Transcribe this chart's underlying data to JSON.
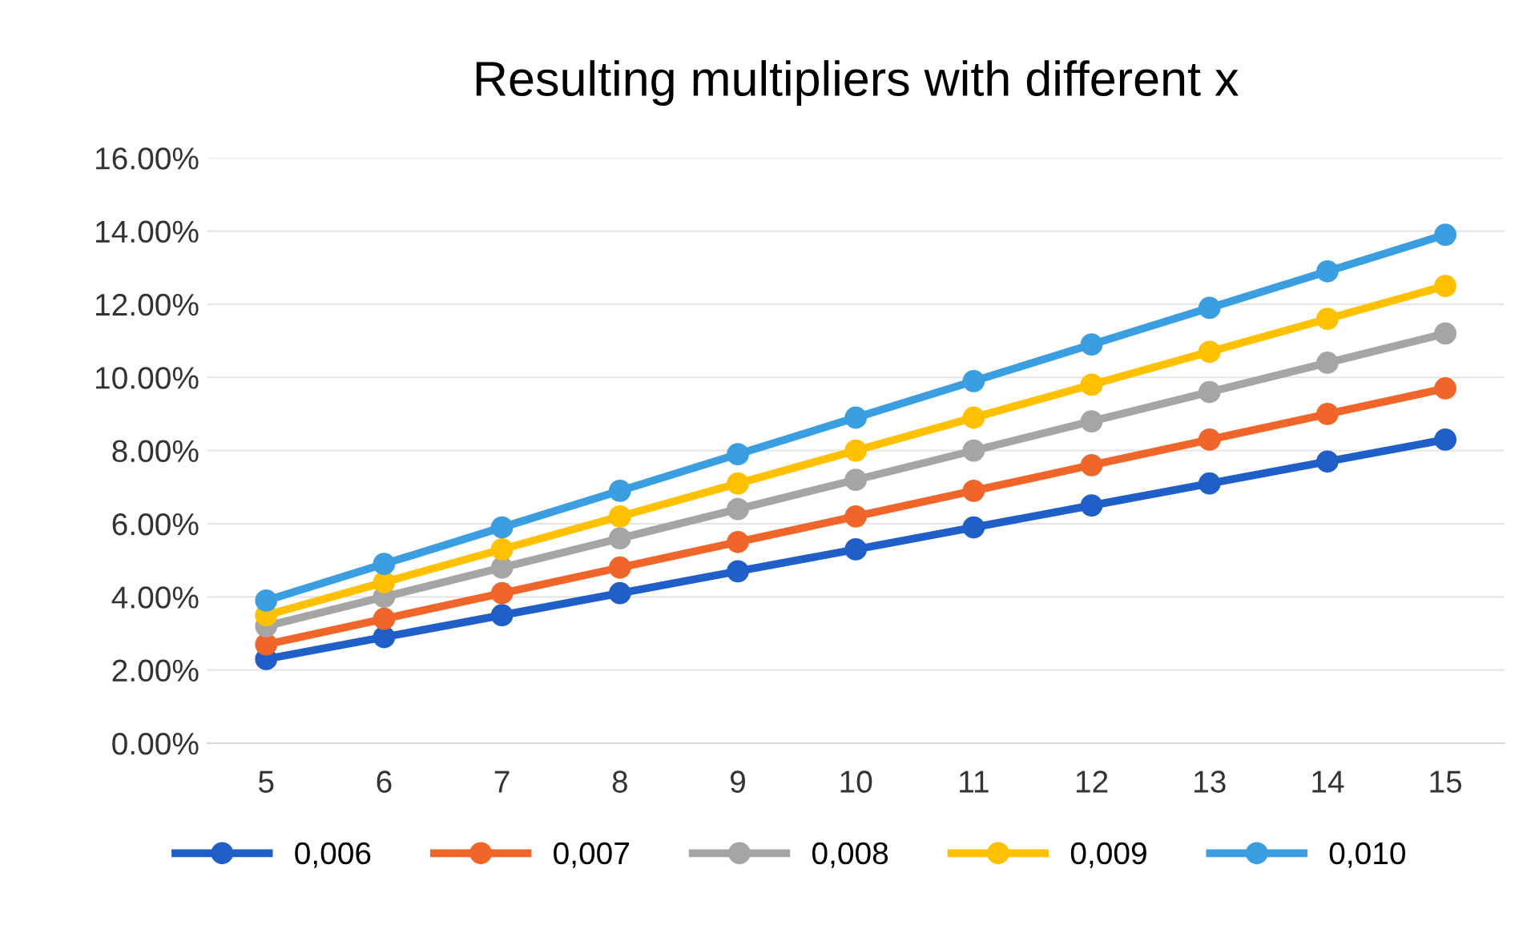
{
  "chart_data": {
    "type": "line",
    "title": "Resulting multipliers with different x",
    "categories": [
      "5",
      "6",
      "7",
      "8",
      "9",
      "10",
      "11",
      "12",
      "13",
      "14",
      "15"
    ],
    "series": [
      {
        "name": "0,006",
        "color": "#1f5fc7",
        "values": [
          2.3,
          2.9,
          3.5,
          4.1,
          4.7,
          5.3,
          5.9,
          6.5,
          7.1,
          7.7,
          8.3
        ]
      },
      {
        "name": "0,007",
        "color": "#f0662a",
        "values": [
          2.7,
          3.4,
          4.1,
          4.8,
          5.5,
          6.2,
          6.9,
          7.6,
          8.3,
          9.0,
          9.7
        ]
      },
      {
        "name": "0,008",
        "color": "#a5a5a5",
        "values": [
          3.2,
          4.0,
          4.8,
          5.6,
          6.4,
          7.2,
          8.0,
          8.8,
          9.6,
          10.4,
          11.2
        ]
      },
      {
        "name": "0,009",
        "color": "#ffc000",
        "values": [
          3.5,
          4.4,
          5.3,
          6.2,
          7.1,
          8.0,
          8.9,
          9.8,
          10.7,
          11.6,
          12.5
        ]
      },
      {
        "name": "0,010",
        "color": "#3a9ee0",
        "values": [
          3.9,
          4.9,
          5.9,
          6.9,
          7.9,
          8.9,
          9.9,
          10.9,
          11.9,
          12.9,
          13.9
        ]
      }
    ],
    "ylim": [
      0,
      16
    ],
    "yticks": [
      {
        "value": 0,
        "label": "0.00%"
      },
      {
        "value": 2,
        "label": "2.00%"
      },
      {
        "value": 4,
        "label": "4.00%"
      },
      {
        "value": 6,
        "label": "6.00%"
      },
      {
        "value": 8,
        "label": "8.00%"
      },
      {
        "value": 10,
        "label": "10.00%"
      },
      {
        "value": 12,
        "label": "12.00%"
      },
      {
        "value": 14,
        "label": "14.00%"
      },
      {
        "value": 16,
        "label": "16.00%"
      }
    ],
    "grid": "y",
    "legend": "bottom",
    "marker": "circle",
    "line_style": "solid"
  }
}
